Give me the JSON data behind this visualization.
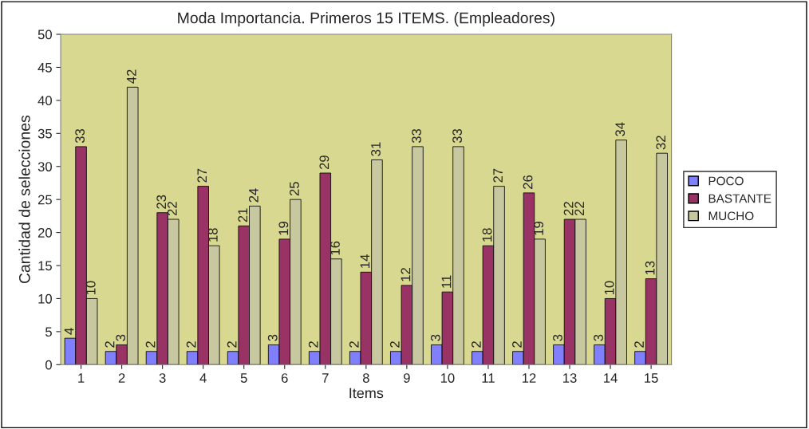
{
  "chart_data": {
    "type": "bar",
    "title": "Moda Importancia. Primeros 15 ITEMS. (Empleadores)",
    "xlabel": "Items",
    "ylabel": "Cantidad de selecciones",
    "categories": [
      "1",
      "2",
      "3",
      "4",
      "5",
      "6",
      "7",
      "8",
      "9",
      "10",
      "11",
      "12",
      "13",
      "14",
      "15"
    ],
    "series": [
      {
        "name": "POCO",
        "color": "#8080ff",
        "values": [
          4,
          2,
          2,
          2,
          2,
          3,
          2,
          2,
          2,
          3,
          2,
          2,
          3,
          3,
          2
        ]
      },
      {
        "name": "BASTANTE",
        "color": "#993366",
        "values": [
          33,
          3,
          23,
          27,
          21,
          19,
          29,
          14,
          12,
          11,
          18,
          26,
          22,
          10,
          13
        ]
      },
      {
        "name": "MUCHO",
        "color": "#c8c8a0",
        "values": [
          10,
          42,
          22,
          18,
          24,
          25,
          16,
          31,
          33,
          33,
          27,
          19,
          22,
          34,
          32
        ]
      }
    ],
    "ylim": [
      0,
      50
    ],
    "yticks": [
      0,
      5,
      10,
      15,
      20,
      25,
      30,
      35,
      40,
      45,
      50
    ],
    "data_labels": true,
    "legend": "right",
    "grid": false
  }
}
